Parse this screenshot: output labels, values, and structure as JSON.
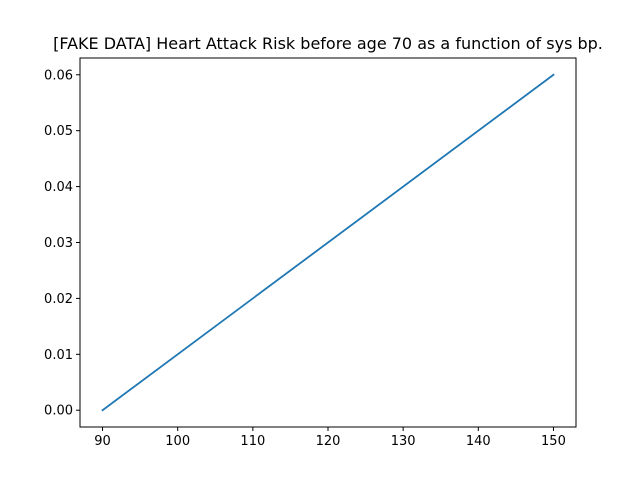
{
  "chart_data": {
    "type": "line",
    "title": "[FAKE DATA] Heart Attack Risk before age 70 as a function of sys bp.",
    "xlabel": "",
    "ylabel": "",
    "xlim": [
      87,
      153
    ],
    "ylim": [
      -0.003,
      0.063
    ],
    "x_ticks": [
      90,
      100,
      110,
      120,
      130,
      140,
      150
    ],
    "y_ticks": [
      0.0,
      0.01,
      0.02,
      0.03,
      0.04,
      0.05,
      0.06
    ],
    "x_tick_labels": [
      "90",
      "100",
      "110",
      "120",
      "130",
      "140",
      "150"
    ],
    "y_tick_labels": [
      "0.00",
      "0.01",
      "0.02",
      "0.03",
      "0.04",
      "0.05",
      "0.06"
    ],
    "grid": false,
    "legend": "none",
    "series": [
      {
        "color": "#1f77b4",
        "x": [
          90,
          150
        ],
        "y": [
          0.0,
          0.06
        ]
      }
    ]
  }
}
